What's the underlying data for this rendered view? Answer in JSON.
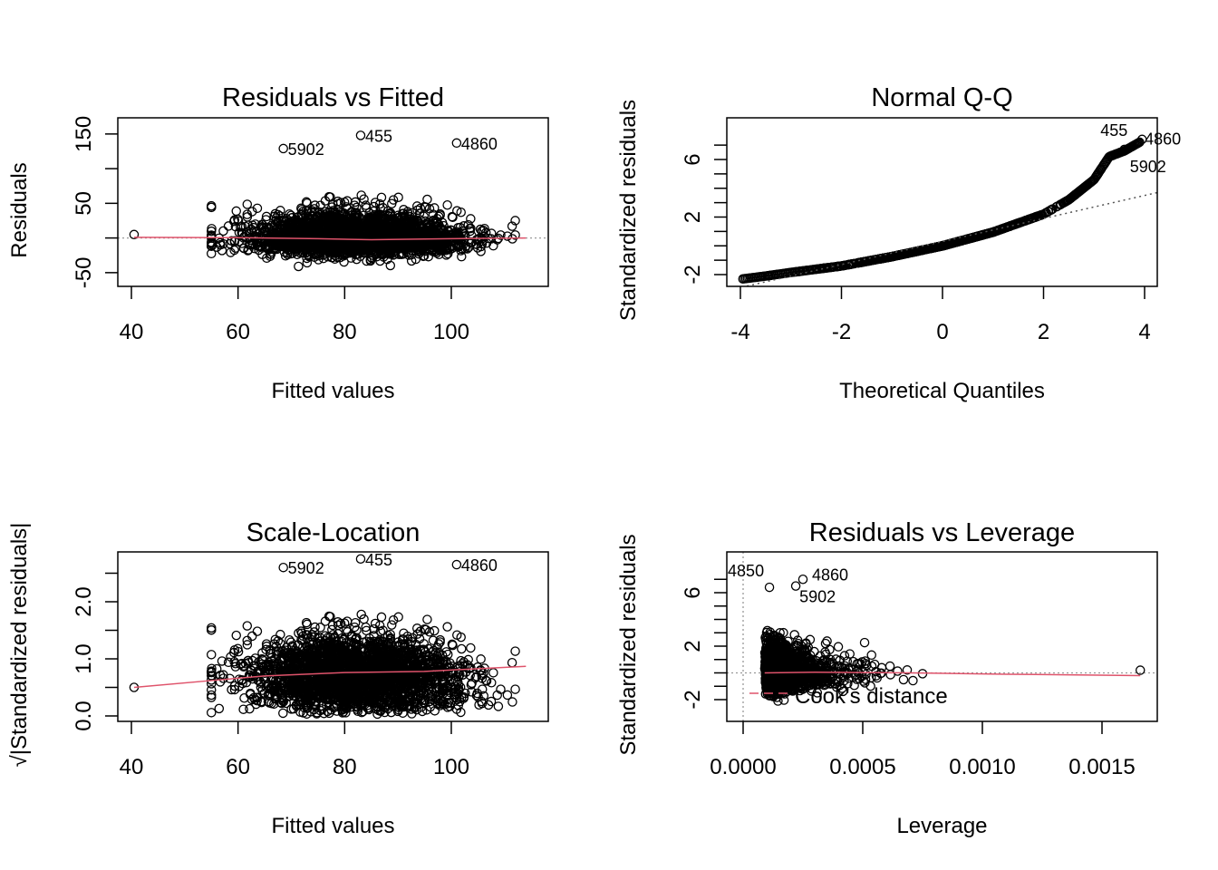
{
  "chart_data": [
    {
      "type": "scatter",
      "title": "Residuals vs Fitted",
      "xlabel": "Fitted values",
      "ylabel": "Residuals",
      "xlim": [
        37,
        118
      ],
      "ylim": [
        -70,
        175
      ],
      "xticks": [
        40,
        60,
        80,
        100
      ],
      "yticks": [
        -50,
        0,
        50,
        100,
        150
      ],
      "ytick_labels": [
        "-50",
        "50",
        "150"
      ],
      "reference_line": {
        "y": 0,
        "style": "dotted",
        "color": "#999999"
      },
      "smoother": {
        "color": "#DF536B",
        "points": [
          [
            40.5,
            1
          ],
          [
            60,
            0.5
          ],
          [
            75,
            -1
          ],
          [
            85,
            -2.5
          ],
          [
            100,
            -1
          ],
          [
            114,
            0
          ]
        ]
      },
      "labeled_points": [
        {
          "label": "5902",
          "x": 68.5,
          "y": 129
        },
        {
          "label": "455",
          "x": 83,
          "y": 148
        },
        {
          "label": "4860",
          "x": 101,
          "y": 137
        }
      ],
      "notable_points": [
        {
          "x": 40.5,
          "y": 5
        }
      ]
    },
    {
      "type": "scatter",
      "title": "Normal Q-Q",
      "xlabel": "Theoretical Quantiles",
      "ylabel": "Standardized residuals",
      "xlim": [
        -4.3,
        4.3
      ],
      "ylim": [
        -2.8,
        8.6
      ],
      "xticks": [
        -4,
        -2,
        0,
        2,
        4
      ],
      "yticks": [
        -2,
        -1,
        0,
        1,
        2,
        3,
        4,
        5,
        6,
        7
      ],
      "ytick_labels": [
        "-2",
        "2",
        "6"
      ],
      "qq_curve": [
        [
          -3.95,
          -2.3
        ],
        [
          -3.5,
          -2.1
        ],
        [
          -3,
          -1.85
        ],
        [
          -2,
          -1.4
        ],
        [
          -1,
          -0.75
        ],
        [
          0,
          0.0
        ],
        [
          1,
          0.95
        ],
        [
          2,
          2.2
        ],
        [
          2.5,
          3.2
        ],
        [
          3,
          4.6
        ],
        [
          3.3,
          6.2
        ],
        [
          3.6,
          6.6
        ],
        [
          3.95,
          7.3
        ]
      ],
      "reference_line": {
        "slope": 0.8,
        "intercept": 0.3,
        "style": "dotted",
        "color": "#555555"
      },
      "labeled_points": [
        {
          "label": "455",
          "x": 3.95,
          "y": 7.4
        },
        {
          "label": "4860",
          "x": 3.75,
          "y": 6.9
        },
        {
          "label": "5902",
          "x": 3.6,
          "y": 6.7
        }
      ]
    },
    {
      "type": "scatter",
      "title": "Scale-Location",
      "xlabel": "Fitted values",
      "ylabel": "√|Standardized residuals|",
      "xlim": [
        37,
        118
      ],
      "ylim": [
        0,
        2.9
      ],
      "xticks": [
        40,
        60,
        80,
        100
      ],
      "yticks": [
        0,
        0.5,
        1.0,
        1.5,
        2.0,
        2.5
      ],
      "ytick_labels": [
        "0.0",
        "1.0",
        "2.0"
      ],
      "smoother": {
        "color": "#DF536B",
        "points": [
          [
            40.5,
            0.5
          ],
          [
            55,
            0.62
          ],
          [
            65,
            0.7
          ],
          [
            80,
            0.76
          ],
          [
            95,
            0.78
          ],
          [
            114,
            0.87
          ]
        ]
      },
      "labeled_points": [
        {
          "label": "5902",
          "x": 68.5,
          "y": 2.6
        },
        {
          "label": "455",
          "x": 83,
          "y": 2.75
        },
        {
          "label": "4860",
          "x": 101,
          "y": 2.65
        }
      ],
      "notable_points": [
        {
          "x": 40.5,
          "y": 0.5
        }
      ]
    },
    {
      "type": "scatter",
      "title": "Residuals vs Leverage",
      "xlabel": "Leverage",
      "ylabel": "Standardized residuals",
      "xlim": [
        -7e-05,
        0.00173
      ],
      "ylim": [
        -2.8,
        9.0
      ],
      "xticks": [
        0.0,
        0.0005,
        0.001,
        0.0015
      ],
      "xtick_labels": [
        "0.0000",
        "0.0005",
        "0.0010",
        "0.0015"
      ],
      "yticks": [
        -2,
        -1,
        0,
        1,
        2,
        3,
        4,
        5,
        6,
        7
      ],
      "ytick_labels": [
        "-2",
        "2",
        "6"
      ],
      "reference_lines": [
        {
          "x": 0,
          "style": "dotted",
          "color": "#999999"
        },
        {
          "y": 0,
          "style": "dotted",
          "color": "#999999"
        }
      ],
      "smoother": {
        "color": "#DF536B",
        "points": [
          [
            9e-05,
            0.0
          ],
          [
            0.0003,
            0.05
          ],
          [
            0.0007,
            0.0
          ],
          [
            0.0011,
            -0.1
          ],
          [
            0.00166,
            -0.2
          ]
        ]
      },
      "legend": {
        "label": "Cook's distance",
        "style": "dashed",
        "color": "#DF536B",
        "position": "bottom-left"
      },
      "labeled_points": [
        {
          "label": "4860",
          "x": 0.00025,
          "y": 7.0
        },
        {
          "label": "4850",
          "x": 0.00011,
          "y": 6.4
        },
        {
          "label": "5902",
          "x": 0.00022,
          "y": 6.5
        }
      ],
      "notable_points": [
        {
          "x": 0.00166,
          "y": 0.2
        }
      ]
    }
  ]
}
